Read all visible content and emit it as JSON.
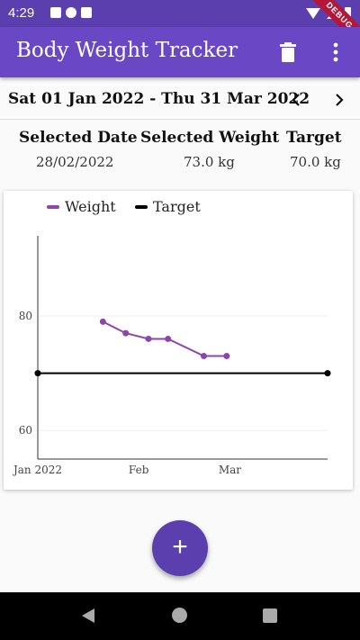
{
  "status": {
    "time": "4:29",
    "debug_label": "DEBUG"
  },
  "appbar": {
    "title": "Body Weight Tracker",
    "delete_icon": "trash-icon",
    "menu_icon": "more-vert-icon"
  },
  "date_range": {
    "label": "Sat 01 Jan 2022 - Thu 31 Mar 2022"
  },
  "summary": {
    "selected_date_label": "Selected Date",
    "selected_date_value": "28/02/2022",
    "selected_weight_label": "Selected Weight",
    "selected_weight_value": "73.0 kg",
    "target_label": "Target",
    "target_value": "70.0 kg"
  },
  "colors": {
    "accent": "#6a47c5",
    "weight_series": "#8e44ad",
    "target_series": "#000000"
  },
  "fab": {
    "label": "+"
  },
  "chart_data": {
    "type": "line",
    "legend": [
      "Weight",
      "Target"
    ],
    "x_ticks": [
      "Jan 2022",
      "Feb",
      "Mar"
    ],
    "y_ticks": [
      60,
      80
    ],
    "xlim": [
      "2022-01-01",
      "2022-03-31"
    ],
    "ylim": [
      55,
      94
    ],
    "series": [
      {
        "name": "Weight",
        "color": "#8e44ad",
        "points": [
          {
            "x": "2022-01-21",
            "y": 79
          },
          {
            "x": "2022-01-28",
            "y": 77
          },
          {
            "x": "2022-02-04",
            "y": 76
          },
          {
            "x": "2022-02-10",
            "y": 76
          },
          {
            "x": "2022-02-21",
            "y": 73
          },
          {
            "x": "2022-02-28",
            "y": 73
          }
        ]
      },
      {
        "name": "Target",
        "color": "#000000",
        "points": [
          {
            "x": "2022-01-01",
            "y": 70
          },
          {
            "x": "2022-03-31",
            "y": 70
          }
        ]
      }
    ]
  }
}
